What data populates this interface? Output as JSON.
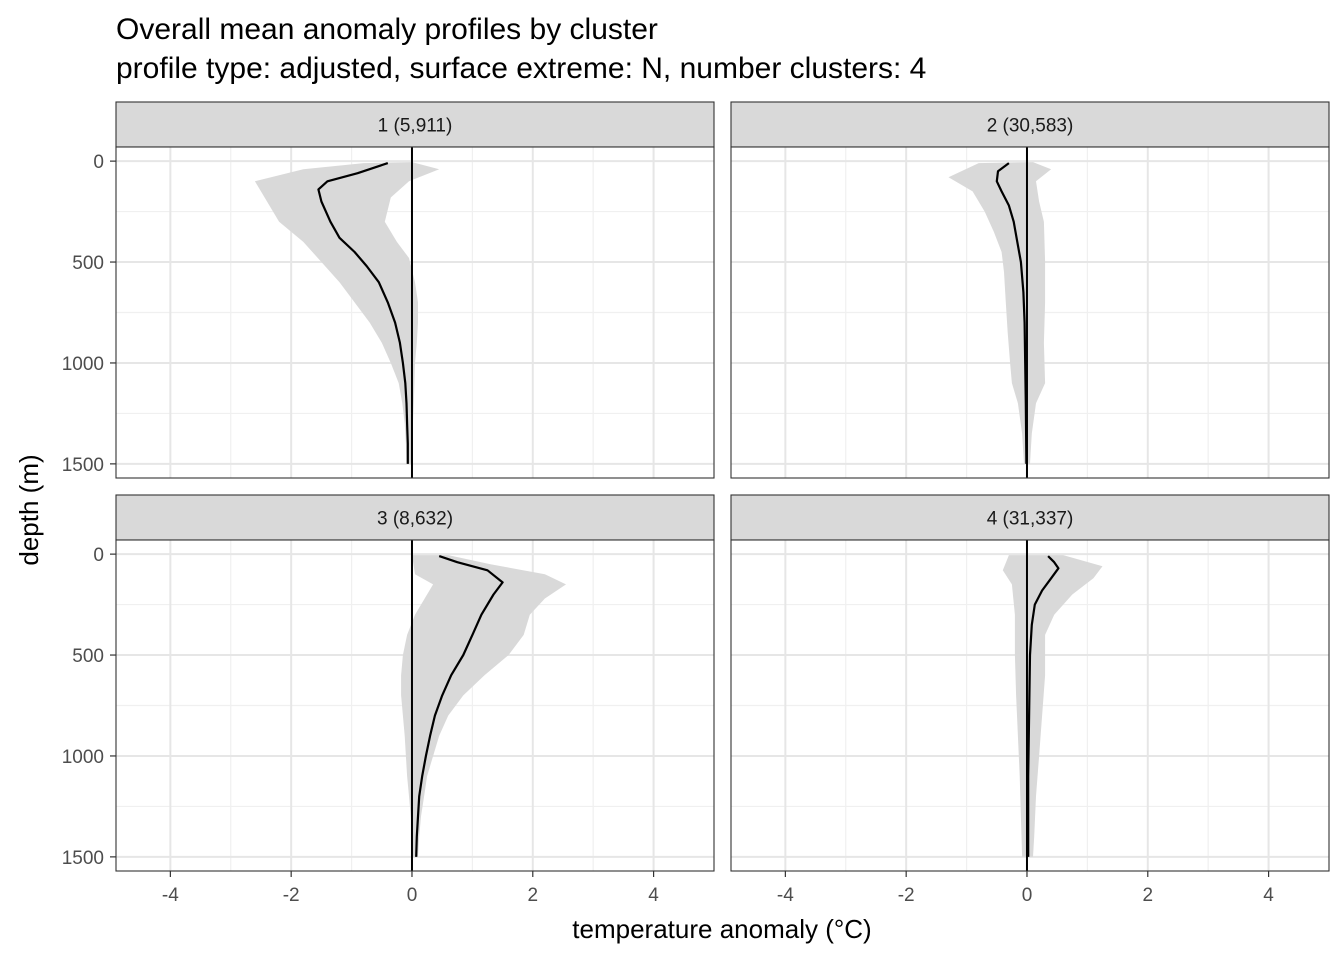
{
  "chart_data": {
    "type": "line",
    "title": "Overall mean anomaly profiles by cluster",
    "subtitle": "profile type: adjusted, surface extreme: N, number clusters: 4",
    "xlabel": "temperature anomaly (°C)",
    "ylabel": "depth (m)",
    "xlim": [
      -4.9,
      5.0
    ],
    "ylim": [
      1570,
      -70
    ],
    "x_ticks": [
      -4,
      -2,
      0,
      2,
      4
    ],
    "x_tick_labels": [
      "-4",
      "-2",
      "0",
      "2",
      "4"
    ],
    "y_ticks": [
      0,
      500,
      1000,
      1500
    ],
    "y_tick_labels": [
      "0",
      "500",
      "1000",
      "1500"
    ],
    "grid": true,
    "y_reversed": true,
    "reference_line_x": 0,
    "ribbon_color": "#d9d9d9",
    "line_color": "#000000",
    "panels": [
      {
        "label": "1 (5,911)",
        "mean": [
          [
            -0.4,
            10
          ],
          [
            -0.9,
            60
          ],
          [
            -1.4,
            100
          ],
          [
            -1.55,
            140
          ],
          [
            -1.5,
            200
          ],
          [
            -1.35,
            300
          ],
          [
            -1.2,
            380
          ],
          [
            -0.95,
            450
          ],
          [
            -0.75,
            520
          ],
          [
            -0.55,
            600
          ],
          [
            -0.4,
            700
          ],
          [
            -0.28,
            800
          ],
          [
            -0.2,
            900
          ],
          [
            -0.15,
            1000
          ],
          [
            -0.11,
            1100
          ],
          [
            -0.09,
            1200
          ],
          [
            -0.08,
            1300
          ],
          [
            -0.07,
            1400
          ],
          [
            -0.07,
            1500
          ]
        ],
        "band_low": [
          [
            -0.8,
            10
          ],
          [
            -1.8,
            40
          ],
          [
            -2.6,
            100
          ],
          [
            -2.4,
            200
          ],
          [
            -2.2,
            300
          ],
          [
            -1.8,
            400
          ],
          [
            -1.5,
            500
          ],
          [
            -1.2,
            600
          ],
          [
            -0.95,
            700
          ],
          [
            -0.7,
            800
          ],
          [
            -0.5,
            900
          ],
          [
            -0.35,
            1000
          ],
          [
            -0.22,
            1100
          ],
          [
            -0.16,
            1200
          ],
          [
            -0.12,
            1300
          ],
          [
            -0.1,
            1400
          ],
          [
            -0.09,
            1500
          ]
        ],
        "band_high": [
          [
            0.0,
            5
          ],
          [
            0.45,
            40
          ],
          [
            -0.05,
            100
          ],
          [
            -0.35,
            180
          ],
          [
            -0.45,
            300
          ],
          [
            -0.25,
            400
          ],
          [
            -0.05,
            480
          ],
          [
            0.05,
            600
          ],
          [
            0.1,
            700
          ],
          [
            0.1,
            800
          ],
          [
            0.08,
            900
          ],
          [
            0.05,
            1000
          ],
          [
            0.03,
            1200
          ],
          [
            0.0,
            1400
          ],
          [
            -0.02,
            1500
          ]
        ]
      },
      {
        "label": "2 (30,583)",
        "mean": [
          [
            -0.3,
            10
          ],
          [
            -0.48,
            50
          ],
          [
            -0.5,
            100
          ],
          [
            -0.42,
            150
          ],
          [
            -0.3,
            220
          ],
          [
            -0.22,
            300
          ],
          [
            -0.16,
            400
          ],
          [
            -0.1,
            500
          ],
          [
            -0.06,
            650
          ],
          [
            -0.04,
            800
          ],
          [
            -0.03,
            1000
          ],
          [
            -0.02,
            1200
          ],
          [
            -0.01,
            1500
          ]
        ],
        "band_low": [
          [
            -0.8,
            10
          ],
          [
            -1.3,
            80
          ],
          [
            -0.9,
            150
          ],
          [
            -0.7,
            250
          ],
          [
            -0.55,
            350
          ],
          [
            -0.42,
            450
          ],
          [
            -0.38,
            550
          ],
          [
            -0.35,
            700
          ],
          [
            -0.32,
            850
          ],
          [
            -0.28,
            1000
          ],
          [
            -0.25,
            1100
          ],
          [
            -0.15,
            1200
          ],
          [
            -0.08,
            1350
          ],
          [
            -0.05,
            1500
          ]
        ],
        "band_high": [
          [
            0.1,
            5
          ],
          [
            0.4,
            40
          ],
          [
            0.15,
            100
          ],
          [
            0.2,
            200
          ],
          [
            0.28,
            300
          ],
          [
            0.3,
            500
          ],
          [
            0.3,
            700
          ],
          [
            0.28,
            900
          ],
          [
            0.3,
            1100
          ],
          [
            0.15,
            1200
          ],
          [
            0.08,
            1350
          ],
          [
            0.05,
            1500
          ]
        ]
      },
      {
        "label": "3 (8,632)",
        "mean": [
          [
            0.45,
            10
          ],
          [
            0.75,
            40
          ],
          [
            1.25,
            80
          ],
          [
            1.5,
            140
          ],
          [
            1.35,
            200
          ],
          [
            1.15,
            300
          ],
          [
            1.0,
            400
          ],
          [
            0.85,
            500
          ],
          [
            0.65,
            600
          ],
          [
            0.5,
            700
          ],
          [
            0.38,
            800
          ],
          [
            0.3,
            900
          ],
          [
            0.23,
            1000
          ],
          [
            0.17,
            1100
          ],
          [
            0.12,
            1200
          ],
          [
            0.1,
            1300
          ],
          [
            0.08,
            1400
          ],
          [
            0.07,
            1500
          ]
        ],
        "band_low": [
          [
            0.0,
            5
          ],
          [
            0.05,
            100
          ],
          [
            0.35,
            150
          ],
          [
            0.05,
            300
          ],
          [
            -0.08,
            400
          ],
          [
            -0.15,
            500
          ],
          [
            -0.18,
            600
          ],
          [
            -0.18,
            700
          ],
          [
            -0.15,
            800
          ],
          [
            -0.12,
            900
          ],
          [
            -0.1,
            1000
          ],
          [
            -0.08,
            1100
          ],
          [
            -0.05,
            1200
          ],
          [
            -0.02,
            1300
          ],
          [
            0.0,
            1400
          ],
          [
            0.0,
            1500
          ]
        ],
        "band_high": [
          [
            0.6,
            5
          ],
          [
            1.3,
            50
          ],
          [
            2.2,
            100
          ],
          [
            2.55,
            150
          ],
          [
            2.2,
            220
          ],
          [
            1.95,
            300
          ],
          [
            1.85,
            400
          ],
          [
            1.6,
            500
          ],
          [
            1.2,
            600
          ],
          [
            0.85,
            700
          ],
          [
            0.6,
            800
          ],
          [
            0.45,
            900
          ],
          [
            0.35,
            1000
          ],
          [
            0.25,
            1100
          ],
          [
            0.2,
            1200
          ],
          [
            0.15,
            1300
          ],
          [
            0.12,
            1400
          ],
          [
            0.1,
            1500
          ]
        ]
      },
      {
        "label": "4 (31,337)",
        "mean": [
          [
            0.35,
            10
          ],
          [
            0.45,
            40
          ],
          [
            0.52,
            70
          ],
          [
            0.4,
            120
          ],
          [
            0.25,
            180
          ],
          [
            0.13,
            250
          ],
          [
            0.08,
            350
          ],
          [
            0.05,
            500
          ],
          [
            0.04,
            700
          ],
          [
            0.03,
            900
          ],
          [
            0.02,
            1100
          ],
          [
            0.02,
            1300
          ],
          [
            0.02,
            1500
          ]
        ],
        "band_low": [
          [
            -0.3,
            5
          ],
          [
            -0.4,
            80
          ],
          [
            -0.25,
            150
          ],
          [
            -0.2,
            300
          ],
          [
            -0.2,
            500
          ],
          [
            -0.18,
            700
          ],
          [
            -0.15,
            900
          ],
          [
            -0.12,
            1100
          ],
          [
            -0.1,
            1300
          ],
          [
            -0.08,
            1500
          ]
        ],
        "band_high": [
          [
            0.6,
            5
          ],
          [
            1.25,
            60
          ],
          [
            1.1,
            120
          ],
          [
            0.75,
            200
          ],
          [
            0.45,
            300
          ],
          [
            0.3,
            400
          ],
          [
            0.3,
            600
          ],
          [
            0.25,
            800
          ],
          [
            0.2,
            1000
          ],
          [
            0.15,
            1200
          ],
          [
            0.12,
            1400
          ],
          [
            0.1,
            1500
          ]
        ]
      }
    ]
  }
}
